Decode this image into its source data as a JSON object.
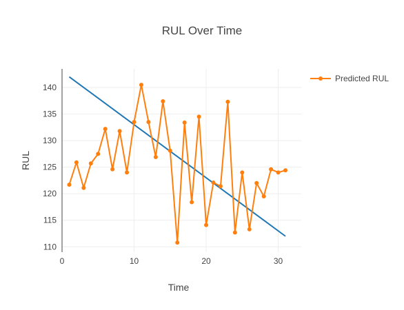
{
  "chart_data": {
    "type": "line",
    "title": "RUL Over Time",
    "xlabel": "Time",
    "ylabel": "RUL",
    "xlim": [
      0,
      33.2
    ],
    "ylim": [
      109,
      143.5
    ],
    "xticks": [
      0,
      10,
      20,
      30
    ],
    "yticks": [
      110,
      115,
      120,
      125,
      130,
      135,
      140
    ],
    "grid": true,
    "legend": "top-right",
    "series": [
      {
        "name": "Predicted RUL",
        "mode": "lines+markers",
        "color": "#ff7f0e",
        "x": [
          1,
          2,
          3,
          4,
          5,
          6,
          7,
          8,
          9,
          10,
          11,
          12,
          13,
          14,
          15,
          16,
          17,
          18,
          19,
          20,
          21,
          22,
          23,
          24,
          25,
          26,
          27,
          28,
          29,
          30,
          31
        ],
        "y": [
          121.7,
          125.9,
          121.1,
          125.7,
          127.5,
          132.2,
          124.6,
          131.8,
          124.0,
          133.5,
          140.5,
          133.5,
          126.9,
          137.4,
          128.1,
          110.8,
          133.4,
          118.4,
          134.5,
          114.1,
          122.1,
          121.4,
          137.3,
          112.7,
          124.0,
          113.3,
          122.0,
          119.5,
          124.6,
          124.0,
          124.4
        ]
      },
      {
        "mode": "lines",
        "color": "#1f77b4",
        "x": [
          1,
          31
        ],
        "y": [
          142.0,
          112.0
        ]
      }
    ]
  }
}
